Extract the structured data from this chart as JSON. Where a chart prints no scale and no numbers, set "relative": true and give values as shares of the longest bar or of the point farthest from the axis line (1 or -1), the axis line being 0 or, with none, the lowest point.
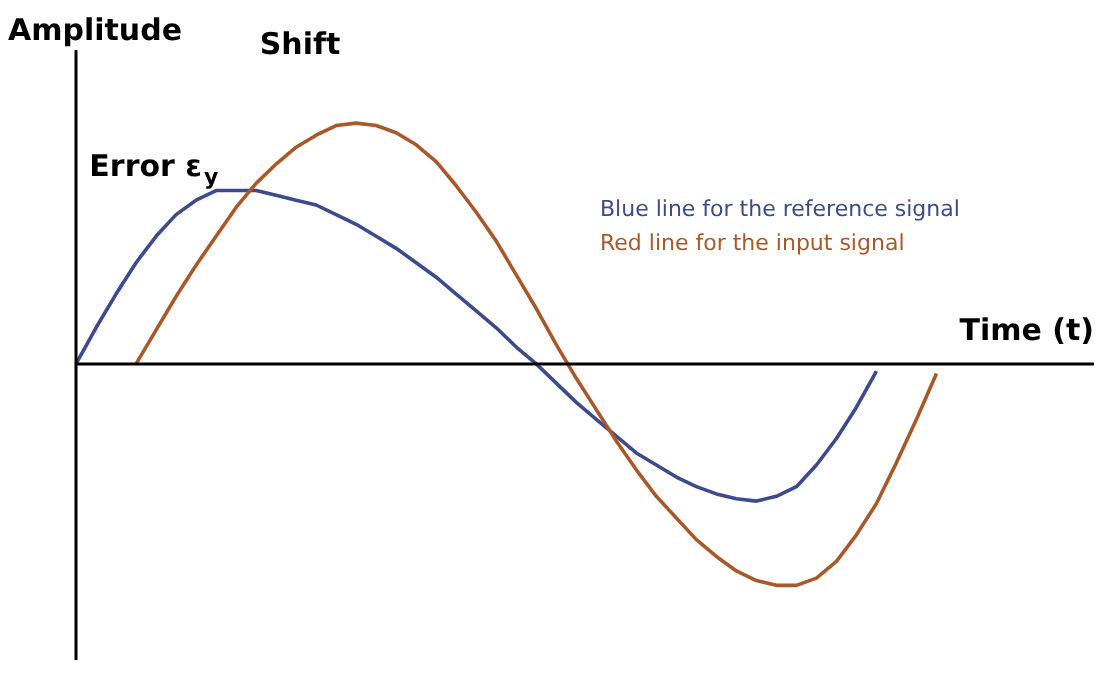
{
  "chart_data": {
    "type": "line",
    "relative": true,
    "xlabel": "Time (t)",
    "ylabel": "Amplitude",
    "categories": [
      null,
      null,
      null,
      null,
      null,
      null,
      null,
      null,
      null,
      null,
      null,
      null,
      null,
      null,
      null,
      null,
      null,
      null,
      null,
      null,
      null,
      null,
      null,
      null,
      null,
      null,
      null,
      null,
      null,
      null,
      null,
      null,
      null,
      null,
      null,
      null,
      null,
      null,
      null,
      null,
      null,
      null,
      null,
      null
    ],
    "series": [
      {
        "name": "Blue line for the reference signal",
        "color": "#3d4a8c",
        "values": [
          0,
          0.15,
          0.29,
          0.42,
          0.53,
          0.62,
          0.68,
          0.72,
          0.72,
          0.72,
          0.7,
          0.68,
          0.66,
          0.62,
          0.58,
          0.53,
          0.48,
          0.42,
          0.36,
          0.29,
          0.22,
          0.15,
          0.07,
          0,
          -0.08,
          -0.16,
          -0.23,
          -0.3,
          -0.37,
          -0.42,
          -0.47,
          -0.51,
          -0.54,
          -0.56,
          -0.57,
          -0.55,
          -0.51,
          -0.42,
          -0.31,
          -0.18,
          -0.03,
          null,
          null,
          null
        ]
      },
      {
        "name": "Red line for the input signal",
        "color": "#a8592a",
        "values": [
          null,
          null,
          null,
          0,
          0.14,
          0.28,
          0.41,
          0.53,
          0.65,
          0.75,
          0.83,
          0.9,
          0.95,
          0.99,
          1.0,
          0.99,
          0.96,
          0.91,
          0.84,
          0.74,
          0.63,
          0.51,
          0.37,
          0.23,
          0.08,
          -0.06,
          -0.19,
          -0.32,
          -0.44,
          -0.55,
          -0.64,
          -0.73,
          -0.8,
          -0.86,
          -0.9,
          -0.92,
          -0.92,
          -0.89,
          -0.82,
          -0.71,
          -0.58,
          -0.41,
          -0.23,
          -0.04
        ]
      }
    ],
    "annotations": [
      "Shift",
      "Error ε$_{y}$"
    ],
    "legend": "top right",
    "grid": false,
    "marker": "none",
    "line_style": "solid"
  }
}
